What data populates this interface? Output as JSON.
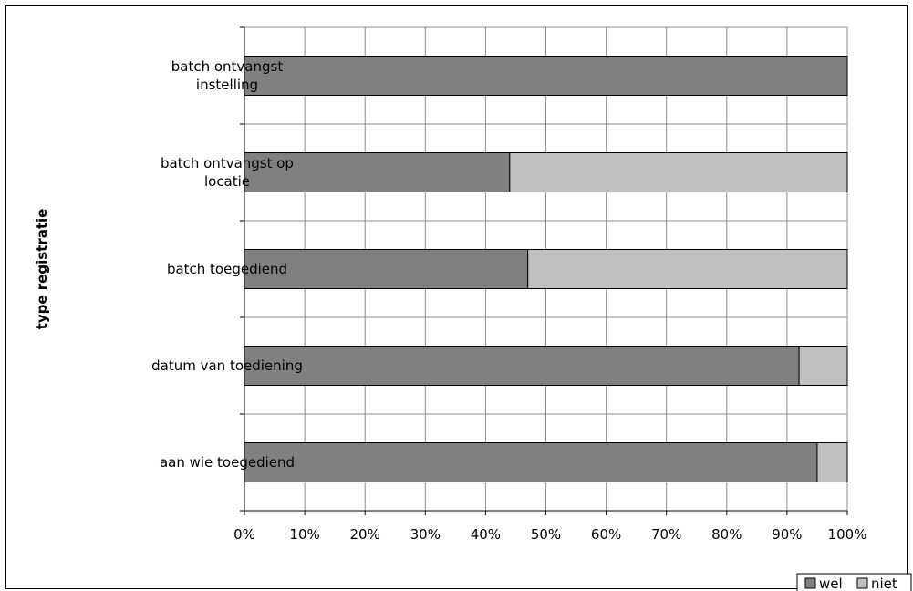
{
  "chart_data": {
    "type": "bar",
    "orientation": "horizontal",
    "stacked": true,
    "ylabel": "type registratie",
    "xlabel": "",
    "xlim": [
      0,
      100
    ],
    "x_tick_labels": [
      "0%",
      "10%",
      "20%",
      "30%",
      "40%",
      "50%",
      "60%",
      "70%",
      "80%",
      "90%",
      "100%"
    ],
    "categories": [
      [
        "batch ontvangst",
        "instelling"
      ],
      [
        "batch ontvangst op",
        "locatie"
      ],
      [
        "batch toegediend"
      ],
      [
        "datum van toediening"
      ],
      [
        "aan wie toegediend"
      ]
    ],
    "series": [
      {
        "name": "wel",
        "color": "#808080",
        "values": [
          100,
          44,
          47,
          92,
          95
        ]
      },
      {
        "name": "niet",
        "color": "#c0c0c0",
        "values": [
          0,
          56,
          53,
          8,
          5
        ]
      }
    ],
    "grid": true,
    "legend": {
      "position": "bottom-right"
    }
  }
}
